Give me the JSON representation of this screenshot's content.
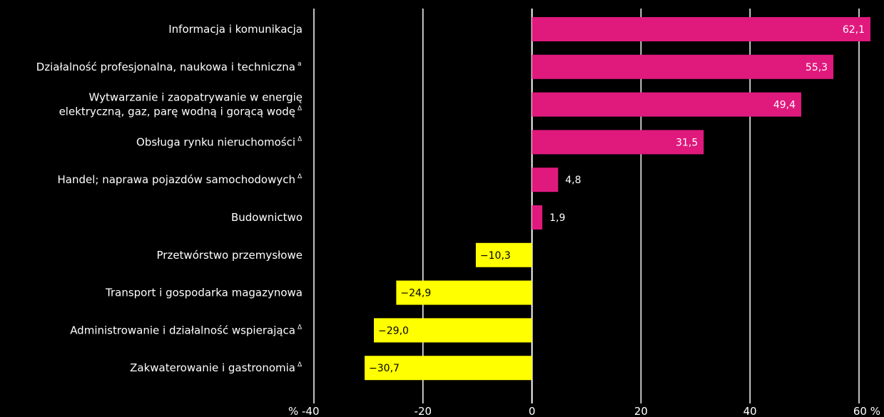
{
  "chart_data": {
    "type": "bar",
    "orientation": "horizontal",
    "categories": [
      {
        "lines": [
          "Informacja i komunikacja"
        ],
        "note": ""
      },
      {
        "lines": [
          "Działalność profesjonalna, naukowa i techniczna"
        ],
        "note": "a"
      },
      {
        "lines": [
          "Wytwarzanie i zaopatrywanie w energię",
          "elektryczną, gaz, parę wodną i gorącą wodę"
        ],
        "note": "Δ"
      },
      {
        "lines": [
          "Obsługa rynku nieruchomości"
        ],
        "note": "Δ"
      },
      {
        "lines": [
          "Handel; naprawa pojazdów samochodowych"
        ],
        "note": "Δ"
      },
      {
        "lines": [
          "Budownictwo"
        ],
        "note": ""
      },
      {
        "lines": [
          "Przetwórstwo przemysłowe"
        ],
        "note": ""
      },
      {
        "lines": [
          "Transport i gospodarka magazynowa"
        ],
        "note": ""
      },
      {
        "lines": [
          "Administrowanie i działalność wspierająca"
        ],
        "note": "Δ"
      },
      {
        "lines": [
          "Zakwaterowanie i gastronomia"
        ],
        "note": "Δ"
      }
    ],
    "values": [
      62.1,
      55.3,
      49.4,
      31.5,
      4.8,
      1.9,
      -10.3,
      -24.9,
      -29.0,
      -30.7
    ],
    "value_labels": [
      "62,1",
      "55,3",
      "49,4",
      "31,5",
      "4,8",
      "1,9",
      "−10,3",
      "−24,9",
      "−29,0",
      "−30,7"
    ],
    "xlim": [
      -40,
      60
    ],
    "ticks": [
      -40,
      -20,
      0,
      20,
      40,
      60
    ],
    "tick_labels": [
      "% -40",
      "-20",
      "0",
      "20",
      "40",
      "60 %"
    ],
    "grid": true,
    "title": "",
    "xlabel": "",
    "ylabel": "",
    "colors": {
      "background": "#000000",
      "positive": "#e0197d",
      "negative": "#ffff00",
      "grid": "#ffffff",
      "text": "#ffffff",
      "label_on_positive": "#ffffff",
      "label_on_negative": "#000000"
    }
  }
}
